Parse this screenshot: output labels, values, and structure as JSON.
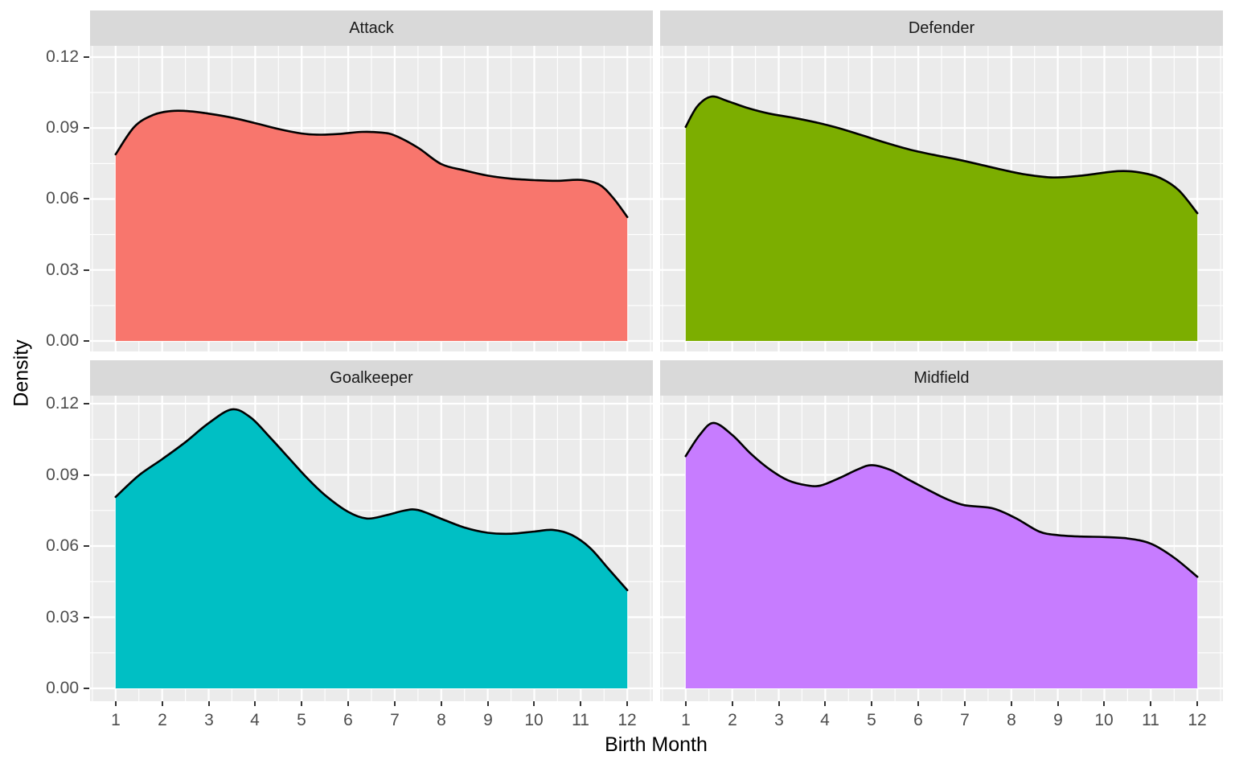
{
  "chart_data": {
    "type": "area",
    "title": "",
    "xlabel": "Birth Month",
    "ylabel": "Density",
    "x_ticks": [
      1,
      2,
      3,
      4,
      5,
      6,
      7,
      8,
      9,
      10,
      11,
      12
    ],
    "y_ticks": [
      0.12,
      0.09,
      0.06,
      0.03,
      0.0
    ],
    "y_tick_labels": [
      "0.12",
      "0.09",
      "0.06",
      "0.03",
      "0.00"
    ],
    "xlim": [
      0.45,
      12.55
    ],
    "ylim": [
      0,
      0.12
    ],
    "grid": "white major and minor gridlines on gray panel",
    "legend_position": "none",
    "colors": {
      "panel_bg": "#EBEBEB",
      "strip_bg": "#D9D9D9",
      "grid_major": "#FFFFFF",
      "grid_minor": "#FFFFFF",
      "curve_stroke": "#000000",
      "tick_label": "#4D4D4D",
      "tick_mark": "#333333"
    },
    "facets": [
      {
        "label": "Attack",
        "color": "#F8766D",
        "points": [
          [
            1,
            0.0789
          ],
          [
            1.4,
            0.0905
          ],
          [
            1.8,
            0.0955
          ],
          [
            2.2,
            0.0972
          ],
          [
            2.6,
            0.0971
          ],
          [
            3,
            0.0961
          ],
          [
            3.5,
            0.0944
          ],
          [
            4,
            0.0921
          ],
          [
            4.5,
            0.0896
          ],
          [
            5,
            0.0877
          ],
          [
            5.4,
            0.0872
          ],
          [
            5.8,
            0.0875
          ],
          [
            6.3,
            0.0884
          ],
          [
            6.7,
            0.0881
          ],
          [
            7,
            0.0869
          ],
          [
            7.5,
            0.0817
          ],
          [
            8,
            0.0748
          ],
          [
            8.5,
            0.0721
          ],
          [
            9,
            0.0699
          ],
          [
            9.5,
            0.0686
          ],
          [
            10,
            0.068
          ],
          [
            10.5,
            0.0677
          ],
          [
            11,
            0.0681
          ],
          [
            11.4,
            0.0661
          ],
          [
            11.7,
            0.0604
          ],
          [
            12,
            0.0524
          ]
        ]
      },
      {
        "label": "Defender",
        "color": "#7CAE00",
        "points": [
          [
            1,
            0.0905
          ],
          [
            1.25,
            0.0992
          ],
          [
            1.55,
            0.1033
          ],
          [
            1.9,
            0.1014
          ],
          [
            2.3,
            0.0987
          ],
          [
            2.8,
            0.0961
          ],
          [
            3.3,
            0.0944
          ],
          [
            3.8,
            0.0924
          ],
          [
            4.3,
            0.0899
          ],
          [
            4.8,
            0.0869
          ],
          [
            5.3,
            0.0838
          ],
          [
            5.8,
            0.081
          ],
          [
            6.3,
            0.0788
          ],
          [
            6.8,
            0.0769
          ],
          [
            7.3,
            0.0747
          ],
          [
            7.8,
            0.0724
          ],
          [
            8.3,
            0.0704
          ],
          [
            8.9,
            0.0691
          ],
          [
            9.5,
            0.0699
          ],
          [
            10.3,
            0.0718
          ],
          [
            10.8,
            0.0711
          ],
          [
            11.2,
            0.0689
          ],
          [
            11.6,
            0.0637
          ],
          [
            12,
            0.054
          ]
        ]
      },
      {
        "label": "Goalkeeper",
        "color": "#00BFC4",
        "points": [
          [
            1,
            0.0807
          ],
          [
            1.5,
            0.0898
          ],
          [
            2,
            0.0966
          ],
          [
            2.5,
            0.1038
          ],
          [
            3,
            0.1118
          ],
          [
            3.5,
            0.1176
          ],
          [
            3.9,
            0.1142
          ],
          [
            4.3,
            0.1062
          ],
          [
            4.7,
            0.0976
          ],
          [
            5.1,
            0.089
          ],
          [
            5.5,
            0.0815
          ],
          [
            6,
            0.0744
          ],
          [
            6.4,
            0.0716
          ],
          [
            6.8,
            0.0729
          ],
          [
            7.2,
            0.0749
          ],
          [
            7.5,
            0.0752
          ],
          [
            8,
            0.0715
          ],
          [
            8.5,
            0.0678
          ],
          [
            9,
            0.0656
          ],
          [
            9.5,
            0.0652
          ],
          [
            10,
            0.0661
          ],
          [
            10.4,
            0.0668
          ],
          [
            10.8,
            0.0647
          ],
          [
            11.2,
            0.0592
          ],
          [
            11.6,
            0.0503
          ],
          [
            12,
            0.0414
          ]
        ]
      },
      {
        "label": "Midfield",
        "color": "#C77CFF",
        "points": [
          [
            1,
            0.0979
          ],
          [
            1.3,
            0.1068
          ],
          [
            1.6,
            0.1119
          ],
          [
            2,
            0.1068
          ],
          [
            2.4,
            0.0989
          ],
          [
            2.8,
            0.0924
          ],
          [
            3.2,
            0.0877
          ],
          [
            3.6,
            0.0856
          ],
          [
            3.9,
            0.0855
          ],
          [
            4.3,
            0.0886
          ],
          [
            4.7,
            0.0923
          ],
          [
            5,
            0.0941
          ],
          [
            5.4,
            0.0921
          ],
          [
            5.8,
            0.0879
          ],
          [
            6.2,
            0.0838
          ],
          [
            6.6,
            0.0799
          ],
          [
            7,
            0.0772
          ],
          [
            7.6,
            0.0759
          ],
          [
            8.1,
            0.0717
          ],
          [
            8.6,
            0.0661
          ],
          [
            9,
            0.0646
          ],
          [
            9.5,
            0.064
          ],
          [
            10,
            0.0638
          ],
          [
            10.5,
            0.0632
          ],
          [
            11,
            0.061
          ],
          [
            11.5,
            0.0551
          ],
          [
            12,
            0.047
          ]
        ]
      }
    ]
  }
}
